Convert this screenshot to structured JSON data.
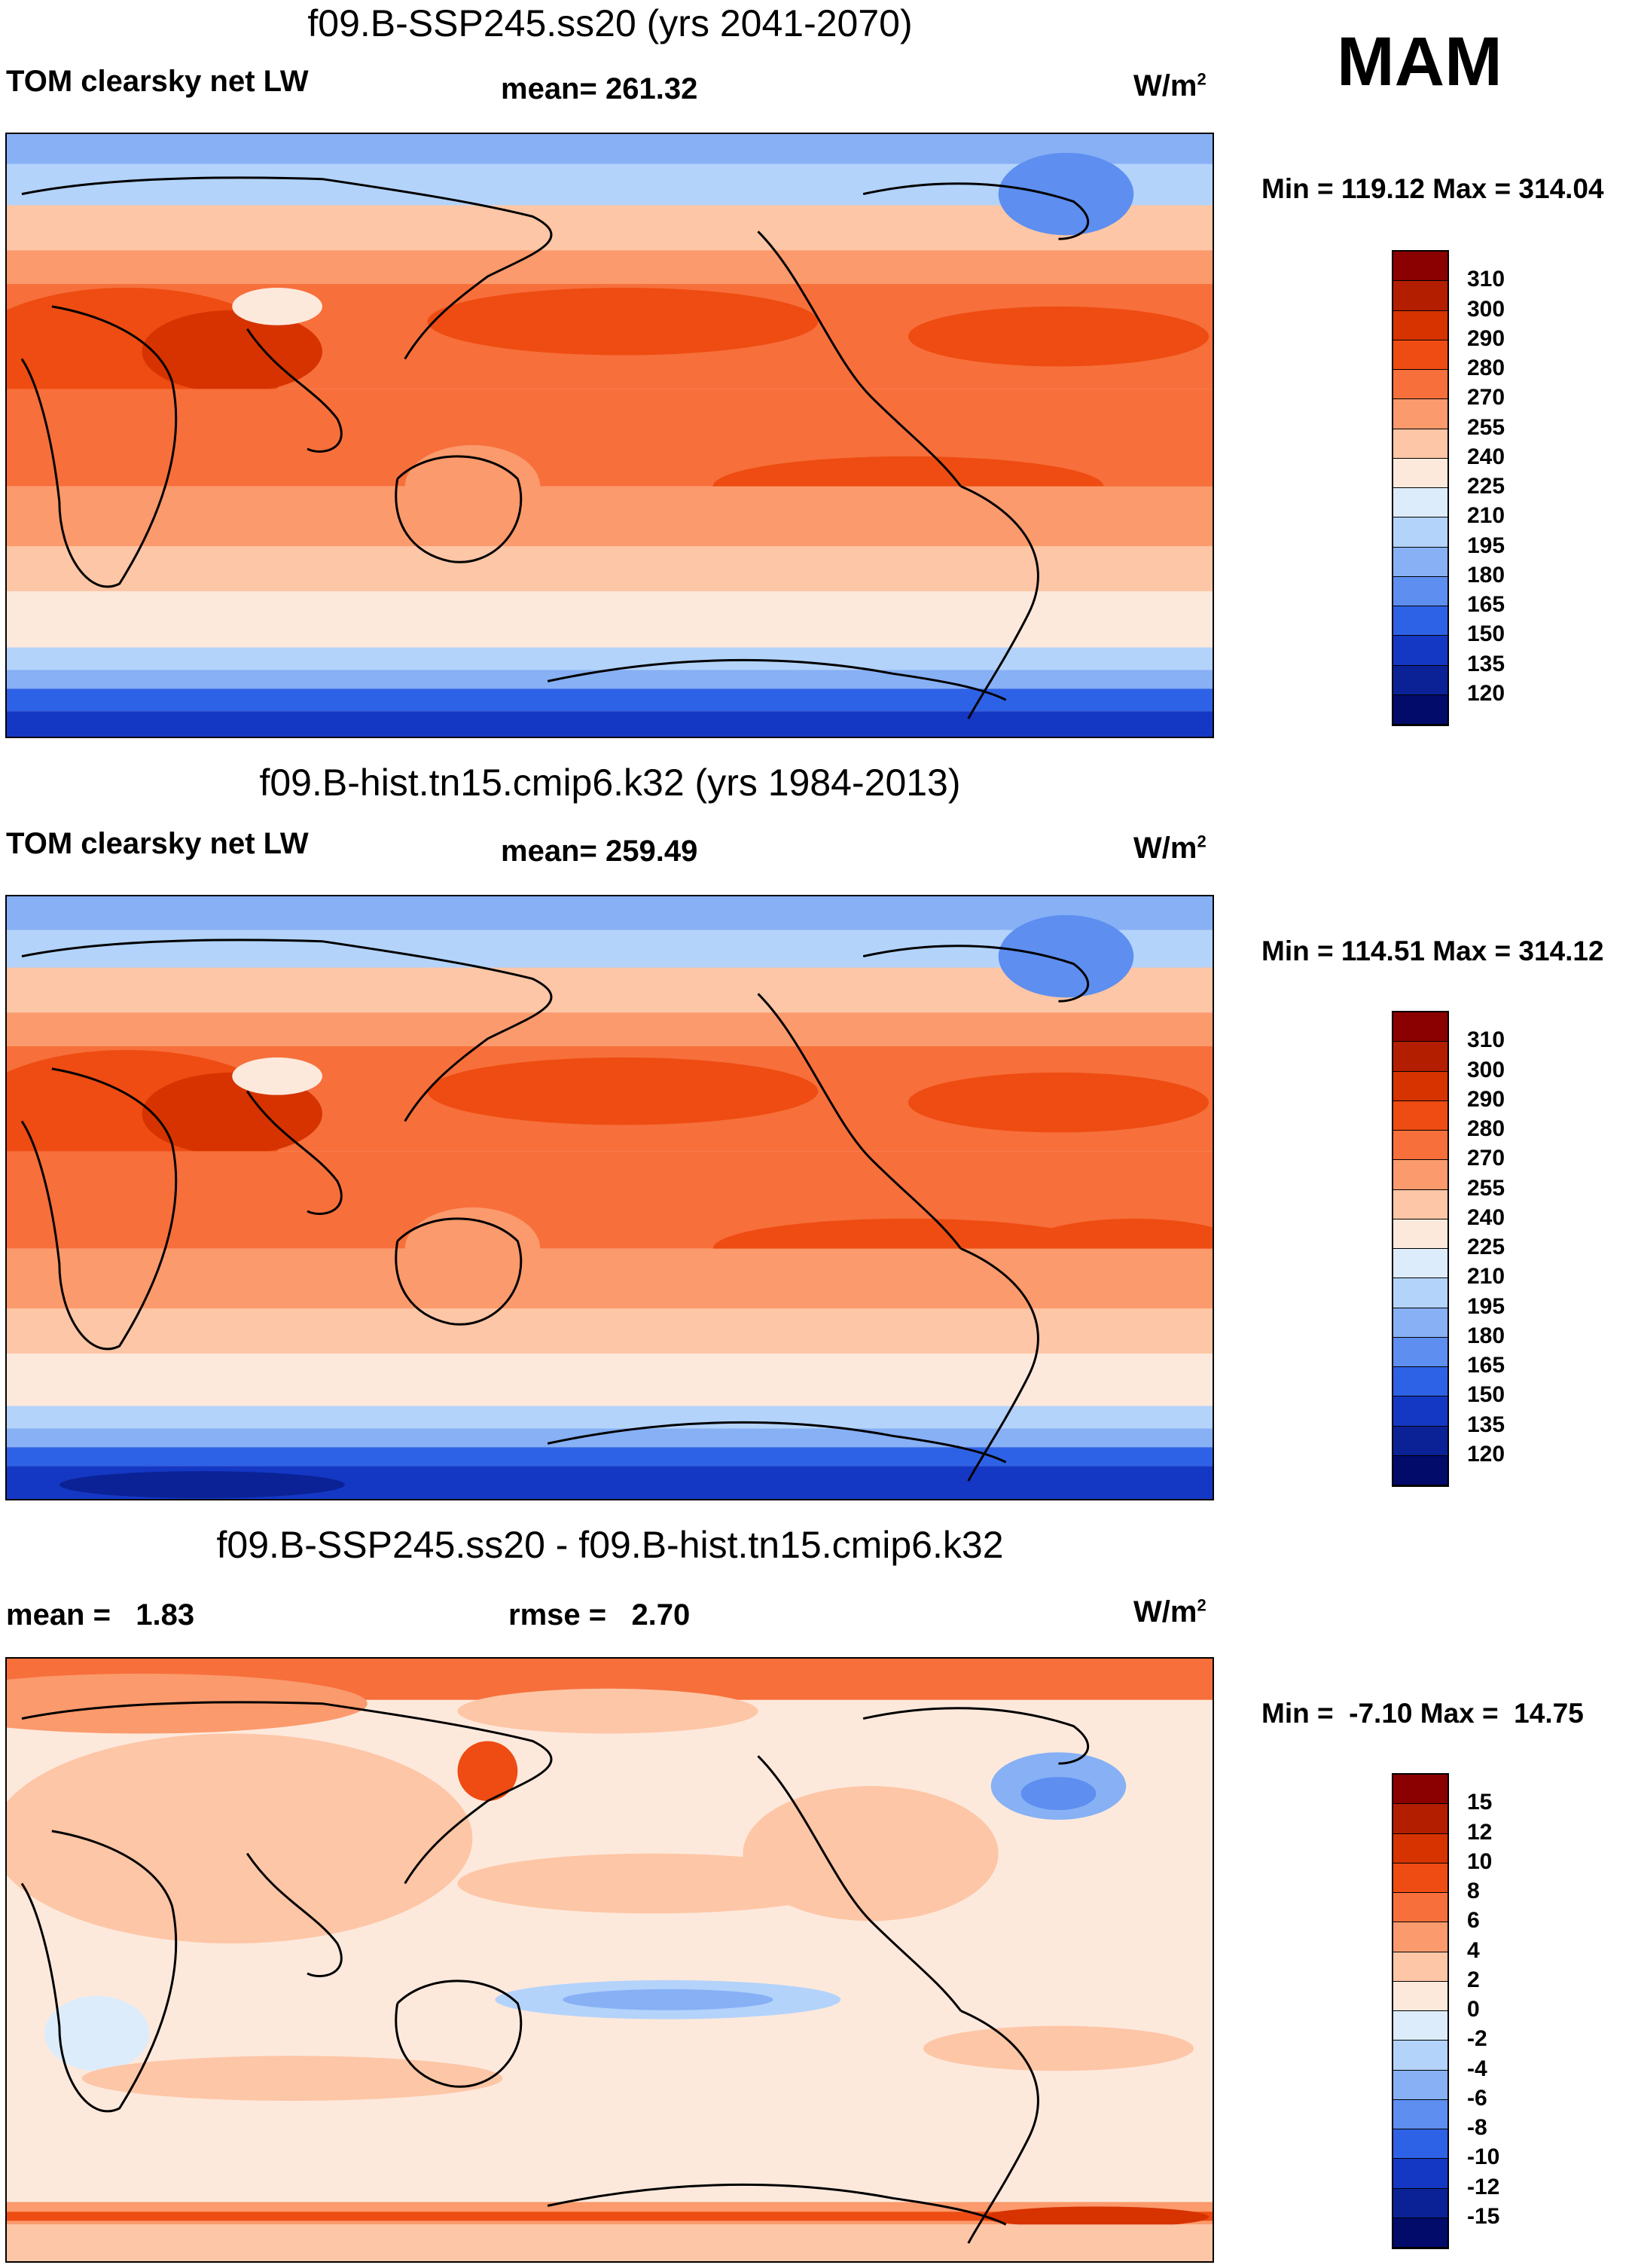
{
  "season": "MAM",
  "units_label": "W/m",
  "units_sup": "2",
  "panels": [
    {
      "title": "f09.B-SSP245.ss20 (yrs 2041-2070)",
      "left_label": "TOM clearsky net LW",
      "center_label": "mean= 261.32",
      "minmax": "Min = 119.12 Max = 314.04",
      "colorbar": {
        "labels": [
          "310",
          "300",
          "290",
          "280",
          "270",
          "255",
          "240",
          "225",
          "210",
          "195",
          "180",
          "165",
          "150",
          "135",
          "120"
        ],
        "colors": [
          "#8b0000",
          "#b31e00",
          "#d63300",
          "#ee4c12",
          "#f76f3b",
          "#fb9a6c",
          "#fdc6a6",
          "#fde9dc",
          "#dcecfb",
          "#b3d3fb",
          "#87b0f5",
          "#5d8ef0",
          "#2e62e6",
          "#1438c4",
          "#0a2296",
          "#020a6a"
        ]
      }
    },
    {
      "title": "f09.B-hist.tn15.cmip6.k32 (yrs 1984-2013)",
      "left_label": "TOM clearsky net LW",
      "center_label": "mean= 259.49",
      "minmax": "Min = 114.51 Max = 314.12",
      "colorbar": {
        "labels": [
          "310",
          "300",
          "290",
          "280",
          "270",
          "255",
          "240",
          "225",
          "210",
          "195",
          "180",
          "165",
          "150",
          "135",
          "120"
        ],
        "colors": [
          "#8b0000",
          "#b31e00",
          "#d63300",
          "#ee4c12",
          "#f76f3b",
          "#fb9a6c",
          "#fdc6a6",
          "#fde9dc",
          "#dcecfb",
          "#b3d3fb",
          "#87b0f5",
          "#5d8ef0",
          "#2e62e6",
          "#1438c4",
          "#0a2296",
          "#020a6a"
        ]
      }
    },
    {
      "title": "f09.B-SSP245.ss20 - f09.B-hist.tn15.cmip6.k32",
      "left_label": "mean =   1.83",
      "center_label": "rmse =   2.70",
      "minmax": "Min =  -7.10 Max =  14.75",
      "colorbar": {
        "labels": [
          "15",
          "12",
          "10",
          "8",
          "6",
          "4",
          "2",
          "0",
          "-2",
          "-4",
          "-6",
          "-8",
          "-10",
          "-12",
          "-15"
        ],
        "colors": [
          "#8b0000",
          "#b31e00",
          "#d63300",
          "#ee4c12",
          "#f76f3b",
          "#fb9a6c",
          "#fdc6a6",
          "#fde9dc",
          "#dcecfb",
          "#b3d3fb",
          "#87b0f5",
          "#5d8ef0",
          "#2e62e6",
          "#1438c4",
          "#0a2296",
          "#020a6a"
        ]
      }
    }
  ]
}
